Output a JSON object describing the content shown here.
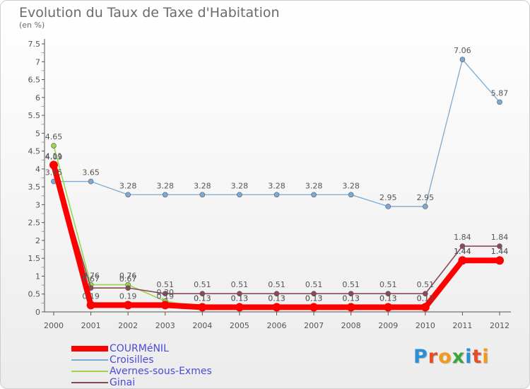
{
  "chart_data": {
    "type": "line",
    "title": "Evolution du Taux de Taxe d'Habitation",
    "subtitle": "(en %)",
    "x": [
      "2000",
      "2001",
      "2002",
      "2003",
      "2004",
      "2005",
      "2006",
      "2007",
      "2008",
      "2009",
      "2010",
      "2011",
      "2012"
    ],
    "ylim": [
      0,
      7.5
    ],
    "yticks": [
      "0",
      "0.5",
      "1",
      "1.5",
      "2",
      "2.5",
      "3",
      "3.5",
      "4",
      "4.5",
      "5",
      "5.5",
      "6",
      "6.5",
      "7",
      "7.5"
    ],
    "grid": false,
    "legend_position": "bottom-left",
    "series": [
      {
        "name": "COURMéNIL",
        "color": "#ff0000",
        "values": [
          4.11,
          0.19,
          0.19,
          0.19,
          0.13,
          0.13,
          0.13,
          0.13,
          0.13,
          0.13,
          0.13,
          1.44,
          1.44
        ],
        "labels": [
          "4.11",
          "0.19",
          "0.19",
          "0.19",
          "0.13",
          "0.13",
          "0.13",
          "0.13",
          "0.13",
          "0.13",
          "0.13",
          "1.44",
          "1.44"
        ]
      },
      {
        "name": "Croisilles",
        "color": "#7baad4",
        "values": [
          3.65,
          3.65,
          3.28,
          3.28,
          3.28,
          3.28,
          3.28,
          3.28,
          3.28,
          2.95,
          2.95,
          7.06,
          5.87
        ],
        "labels": [
          "3.65",
          "3.65",
          "3.28",
          "3.28",
          "3.28",
          "3.28",
          "3.28",
          "3.28",
          "3.28",
          "2.95",
          "2.95",
          "7.06",
          "5.87"
        ]
      },
      {
        "name": "Avernes-sous-Exmes",
        "color": "#99d64a",
        "values": [
          4.65,
          0.76,
          0.76,
          0.3,
          0.13,
          0.13,
          0.13,
          0.13,
          0.13,
          0.13,
          0.13,
          1.44,
          1.44
        ],
        "labels": [
          "4.65",
          "0.76",
          "0.76",
          "0.30",
          "0.13",
          "0.13",
          "0.13",
          "0.13",
          "0.13",
          "0.13",
          "0.13",
          "1.44",
          "1.44"
        ]
      },
      {
        "name": "Ginai",
        "color": "#8a4a55",
        "values": [
          4.09,
          0.67,
          0.67,
          0.51,
          0.51,
          0.51,
          0.51,
          0.51,
          0.51,
          0.51,
          0.51,
          1.84,
          1.84
        ],
        "labels": [
          "4.09",
          "0.67",
          "0.67",
          "0.51",
          "0.51",
          "0.51",
          "0.51",
          "0.51",
          "0.51",
          "0.51",
          "0.51",
          "1.84",
          "1.84"
        ]
      }
    ]
  },
  "branding": {
    "logo_text": "Proxiti"
  }
}
